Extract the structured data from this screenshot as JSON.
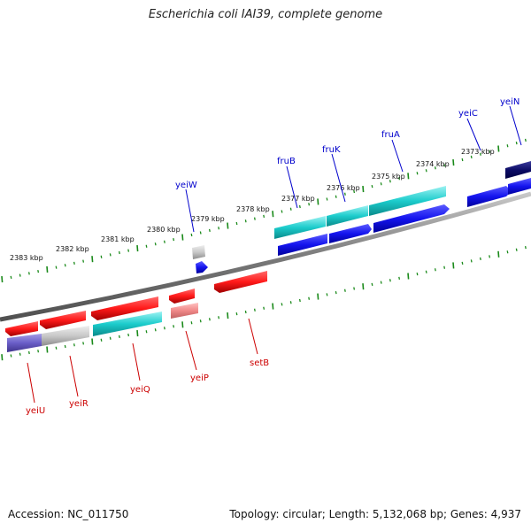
{
  "title": "Escherichia coli IAI39, complete genome",
  "footer": {
    "accession": "Accession: NC_011750",
    "summary": "Topology: circular; Length: 5,132,068 bp; Genes: 4,937"
  },
  "colors": {
    "forward_label": "#0000cc",
    "reverse_label": "#cc0000",
    "backbone": "#808080",
    "ticks": "#1a8a1a"
  },
  "kbp_labels": [
    "2383 kbp",
    "2382 kbp",
    "2381 kbp",
    "2380 kbp",
    "2379 kbp",
    "2378 kbp",
    "2377 kbp",
    "2376 kbp",
    "2375 kbp",
    "2374 kbp",
    "2373 kbp"
  ],
  "forward_genes": [
    {
      "name": "fruB"
    },
    {
      "name": "fruK"
    },
    {
      "name": "fruA"
    },
    {
      "name": "yeiC"
    },
    {
      "name": "yeiN"
    },
    {
      "name": "yeiW"
    }
  ],
  "reverse_genes": [
    {
      "name": "yeiU"
    },
    {
      "name": "yeiR"
    },
    {
      "name": "yeiQ"
    },
    {
      "name": "yeiP"
    },
    {
      "name": "setB"
    }
  ]
}
